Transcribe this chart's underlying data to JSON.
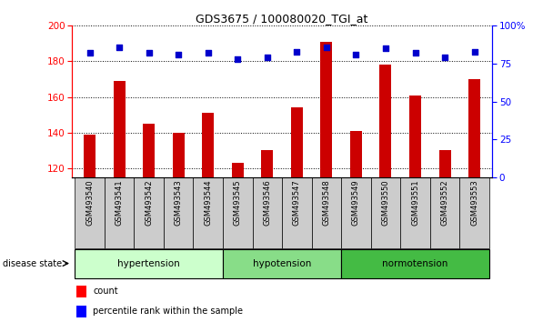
{
  "title": "GDS3675 / 100080020_TGI_at",
  "samples": [
    "GSM493540",
    "GSM493541",
    "GSM493542",
    "GSM493543",
    "GSM493544",
    "GSM493545",
    "GSM493546",
    "GSM493547",
    "GSM493548",
    "GSM493549",
    "GSM493550",
    "GSM493551",
    "GSM493552",
    "GSM493553"
  ],
  "count_values": [
    139,
    169,
    145,
    140,
    151,
    123,
    130,
    154,
    191,
    141,
    178,
    161,
    130,
    170
  ],
  "percentile_values": [
    82,
    86,
    82,
    81,
    82,
    78,
    79,
    83,
    86,
    81,
    85,
    82,
    79,
    83
  ],
  "ylim_left": [
    115,
    200
  ],
  "ylim_right": [
    0,
    100
  ],
  "yticks_left": [
    120,
    140,
    160,
    180,
    200
  ],
  "yticks_right": [
    0,
    25,
    50,
    75,
    100
  ],
  "groups": [
    {
      "label": "hypertension",
      "indices": [
        0,
        1,
        2,
        3,
        4
      ],
      "color": "#ccffcc"
    },
    {
      "label": "hypotension",
      "indices": [
        5,
        6,
        7,
        8
      ],
      "color": "#88dd88"
    },
    {
      "label": "normotension",
      "indices": [
        9,
        10,
        11,
        12,
        13
      ],
      "color": "#44bb44"
    }
  ],
  "bar_color": "#cc0000",
  "dot_color": "#0000cc",
  "bar_bottom": 115,
  "disease_state_label": "disease state",
  "legend_count_label": "count",
  "legend_pct_label": "percentile rank within the sample",
  "tick_area_color": "#cccccc",
  "bar_width": 0.4
}
